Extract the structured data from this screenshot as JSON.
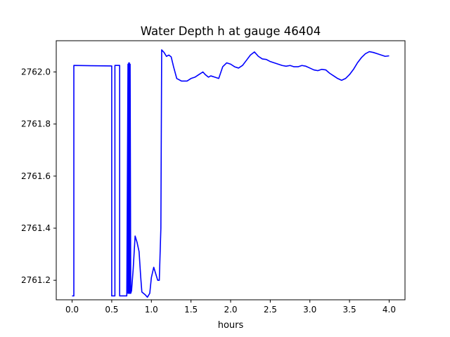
{
  "chart_data": {
    "type": "line",
    "title": "Water Depth h at gauge 46404",
    "xlabel": "hours",
    "ylabel": "",
    "xlim": [
      -0.2,
      4.2
    ],
    "ylim": [
      2761.125,
      2762.12
    ],
    "x_ticks": [
      0.0,
      0.5,
      1.0,
      1.5,
      2.0,
      2.5,
      3.0,
      3.5,
      4.0
    ],
    "x_tick_labels": [
      "0.0",
      "0.5",
      "1.0",
      "1.5",
      "2.0",
      "2.5",
      "3.0",
      "3.5",
      "4.0"
    ],
    "y_ticks": [
      2761.2,
      2761.4,
      2761.6,
      2761.8,
      2762.0
    ],
    "y_tick_labels": [
      "2761.2",
      "2761.4",
      "2761.6",
      "2761.8",
      "2762.0"
    ],
    "grid": false,
    "legend": "none",
    "series": [
      {
        "color": "#0000ff",
        "x": [
          0.0,
          0.022,
          0.022,
          0.5,
          0.5,
          0.54,
          0.54,
          0.6,
          0.6,
          0.62,
          0.62,
          0.69,
          0.705,
          0.705,
          0.715,
          0.715,
          0.722,
          0.722,
          0.732,
          0.732,
          0.74,
          0.75,
          0.77,
          0.795,
          0.82,
          0.845,
          0.865,
          0.88,
          0.9,
          0.92,
          0.95,
          0.98,
          1.0,
          1.03,
          1.06,
          1.08,
          1.1,
          1.12,
          1.13,
          1.13,
          1.16,
          1.19,
          1.22,
          1.25,
          1.28,
          1.32,
          1.38,
          1.45,
          1.5,
          1.55,
          1.6,
          1.65,
          1.68,
          1.72,
          1.75,
          1.8,
          1.85,
          1.9,
          1.95,
          2.0,
          2.05,
          2.1,
          2.15,
          2.2,
          2.25,
          2.3,
          2.35,
          2.4,
          2.45,
          2.5,
          2.55,
          2.6,
          2.65,
          2.7,
          2.75,
          2.8,
          2.85,
          2.9,
          2.95,
          3.0,
          3.05,
          3.1,
          3.15,
          3.2,
          3.25,
          3.3,
          3.35,
          3.4,
          3.45,
          3.5,
          3.55,
          3.6,
          3.65,
          3.7,
          3.75,
          3.8,
          3.85,
          3.9,
          3.95,
          4.0
        ],
        "y": [
          2761.14,
          2761.14,
          2762.025,
          2762.023,
          2761.14,
          2761.14,
          2762.025,
          2762.025,
          2761.14,
          2761.14,
          2761.14,
          2761.14,
          2762.03,
          2761.15,
          2761.15,
          2762.035,
          2762.035,
          2761.15,
          2761.15,
          2762.03,
          2761.15,
          2761.16,
          2761.24,
          2761.37,
          2761.345,
          2761.31,
          2761.215,
          2761.155,
          2761.15,
          2761.145,
          2761.135,
          2761.15,
          2761.21,
          2761.25,
          2761.22,
          2761.2,
          2761.2,
          2761.4,
          2762.085,
          2762.085,
          2762.075,
          2762.06,
          2762.065,
          2762.058,
          2762.02,
          2761.975,
          2761.965,
          2761.965,
          2761.975,
          2761.98,
          2761.99,
          2762.0,
          2761.99,
          2761.98,
          2761.985,
          2761.98,
          2761.975,
          2762.02,
          2762.035,
          2762.03,
          2762.02,
          2762.015,
          2762.025,
          2762.045,
          2762.065,
          2762.077,
          2762.06,
          2762.05,
          2762.048,
          2762.04,
          2762.035,
          2762.03,
          2762.025,
          2762.022,
          2762.025,
          2762.02,
          2762.02,
          2762.025,
          2762.022,
          2762.015,
          2762.008,
          2762.005,
          2762.01,
          2762.008,
          2761.995,
          2761.985,
          2761.975,
          2761.968,
          2761.975,
          2761.99,
          2762.01,
          2762.035,
          2762.055,
          2762.07,
          2762.078,
          2762.075,
          2762.07,
          2762.065,
          2762.06,
          2762.062
        ]
      }
    ]
  }
}
